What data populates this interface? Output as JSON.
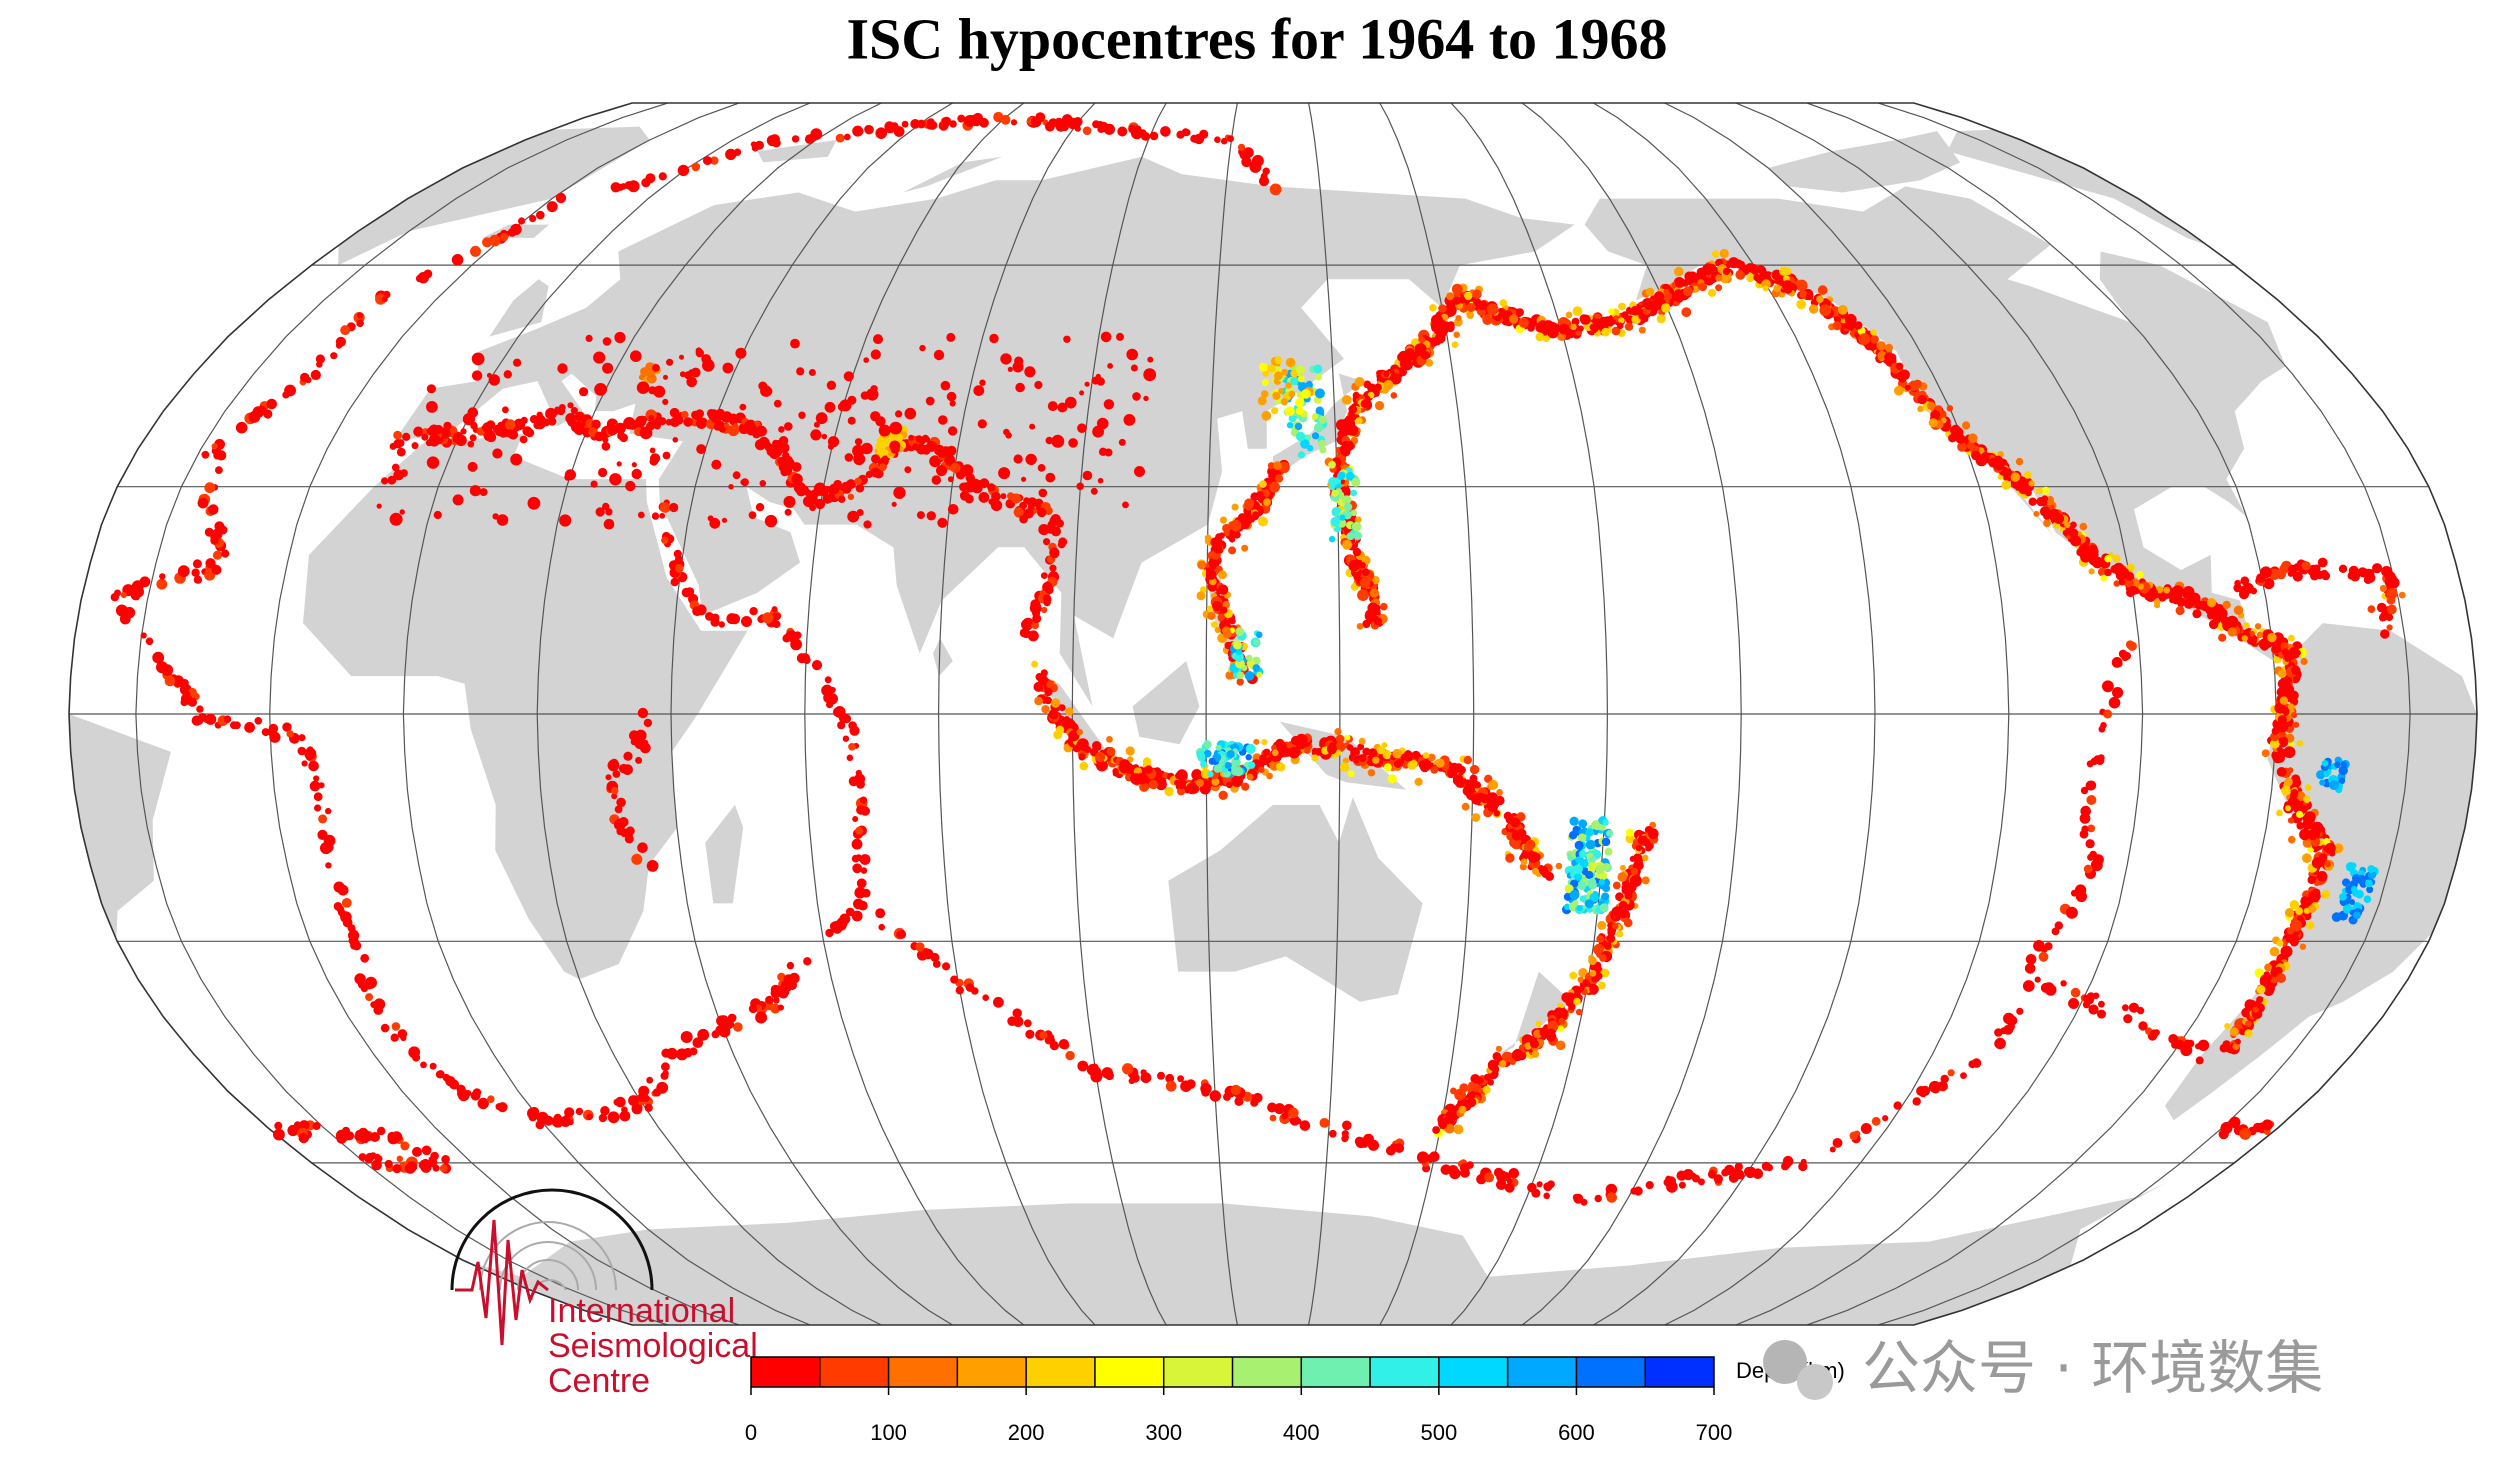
{
  "title": "ISC hypocentres for 1964 to 1968",
  "colorbar": {
    "label": "Depth (km)",
    "ticks": [
      0,
      100,
      200,
      300,
      400,
      500,
      600,
      700
    ],
    "colors": [
      "#ff0000",
      "#ff3b00",
      "#ff7000",
      "#ffa000",
      "#ffd000",
      "#ffff00",
      "#d8f53a",
      "#a8f070",
      "#70f0b0",
      "#30f0e8",
      "#00d8ff",
      "#00a8ff",
      "#0070ff",
      "#0030ff"
    ]
  },
  "logo": {
    "lines": [
      "International",
      "Seismological",
      "Centre"
    ]
  },
  "watermark": "公众号 · 环境数集"
}
